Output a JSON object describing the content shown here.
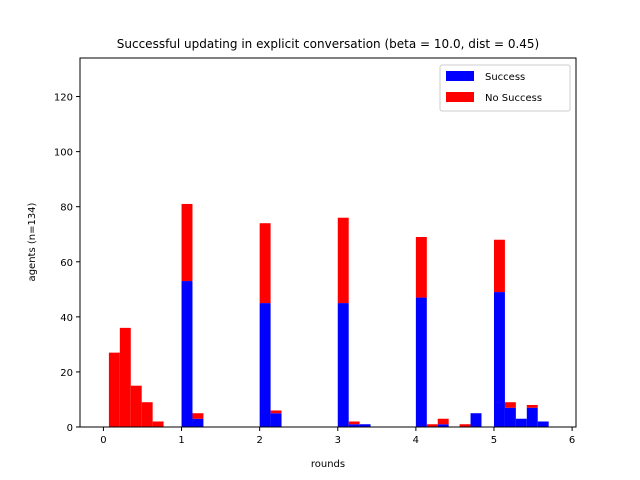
{
  "chart_data": {
    "type": "bar",
    "stacked": true,
    "title": "Successful updating in explicit conversation (beta = 10.0, dist = 0.45)",
    "xlabel": "rounds",
    "ylabel": "agents (n=134)",
    "xlim": [
      -0.3,
      6.05
    ],
    "ylim": [
      0,
      134
    ],
    "xticks": [
      0,
      1,
      2,
      3,
      4,
      5,
      6
    ],
    "yticks": [
      0,
      20,
      40,
      60,
      80,
      100,
      120
    ],
    "bin_width": 0.14,
    "legend": {
      "position": "top-right"
    },
    "series": [
      {
        "name": "Success",
        "color": "#0000ff"
      },
      {
        "name": "No Success",
        "color": "#ff0000"
      }
    ],
    "bins": [
      {
        "x": 0.07,
        "success": 0,
        "no_success": 27
      },
      {
        "x": 0.21,
        "success": 0,
        "no_success": 36
      },
      {
        "x": 0.35,
        "success": 0,
        "no_success": 15
      },
      {
        "x": 0.49,
        "success": 0,
        "no_success": 9
      },
      {
        "x": 0.63,
        "success": 0,
        "no_success": 2
      },
      {
        "x": 1.0,
        "success": 53,
        "no_success": 28
      },
      {
        "x": 1.14,
        "success": 3,
        "no_success": 2
      },
      {
        "x": 2.0,
        "success": 45,
        "no_success": 29
      },
      {
        "x": 2.14,
        "success": 5,
        "no_success": 1
      },
      {
        "x": 3.0,
        "success": 45,
        "no_success": 31
      },
      {
        "x": 3.14,
        "success": 1,
        "no_success": 1
      },
      {
        "x": 3.28,
        "success": 1,
        "no_success": 0
      },
      {
        "x": 4.0,
        "success": 47,
        "no_success": 22
      },
      {
        "x": 4.14,
        "success": 0,
        "no_success": 1
      },
      {
        "x": 4.28,
        "success": 1,
        "no_success": 2
      },
      {
        "x": 4.56,
        "success": 0,
        "no_success": 1
      },
      {
        "x": 4.7,
        "success": 5,
        "no_success": 0
      },
      {
        "x": 5.0,
        "success": 49,
        "no_success": 19
      },
      {
        "x": 5.14,
        "success": 7,
        "no_success": 2
      },
      {
        "x": 5.28,
        "success": 3,
        "no_success": 0
      },
      {
        "x": 5.42,
        "success": 7,
        "no_success": 1
      },
      {
        "x": 5.56,
        "success": 2,
        "no_success": 0
      }
    ]
  }
}
